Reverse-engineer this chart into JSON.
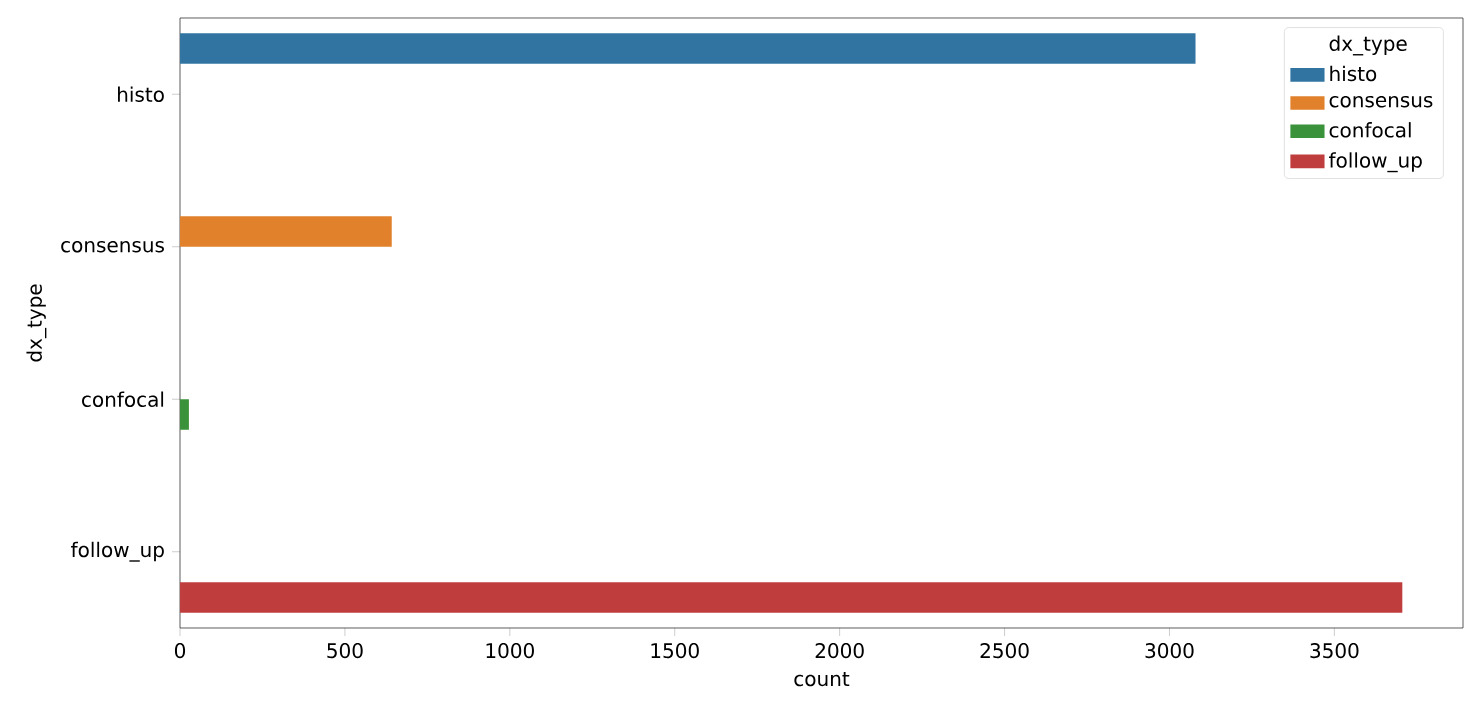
{
  "chart_data": {
    "type": "bar",
    "orientation": "horizontal",
    "xlabel": "count",
    "ylabel": "dx_type",
    "legend_title": "dx_type",
    "legend": "top right",
    "categories": [
      "histo",
      "consensus",
      "confocal",
      "follow_up"
    ],
    "series": [
      {
        "name": "histo",
        "color": "#3274a1",
        "values": [
          3079,
          0,
          0,
          0
        ]
      },
      {
        "name": "consensus",
        "color": "#e1812c",
        "values": [
          0,
          642,
          0,
          0
        ]
      },
      {
        "name": "confocal",
        "color": "#3a923a",
        "values": [
          0,
          0,
          27,
          0
        ]
      },
      {
        "name": "follow_up",
        "color": "#c03d3e",
        "values": [
          0,
          0,
          0,
          3706
        ]
      }
    ],
    "xlim": [
      0,
      3890
    ],
    "xticks": [
      0,
      500,
      1000,
      1500,
      2000,
      2500,
      3000,
      3500
    ]
  }
}
